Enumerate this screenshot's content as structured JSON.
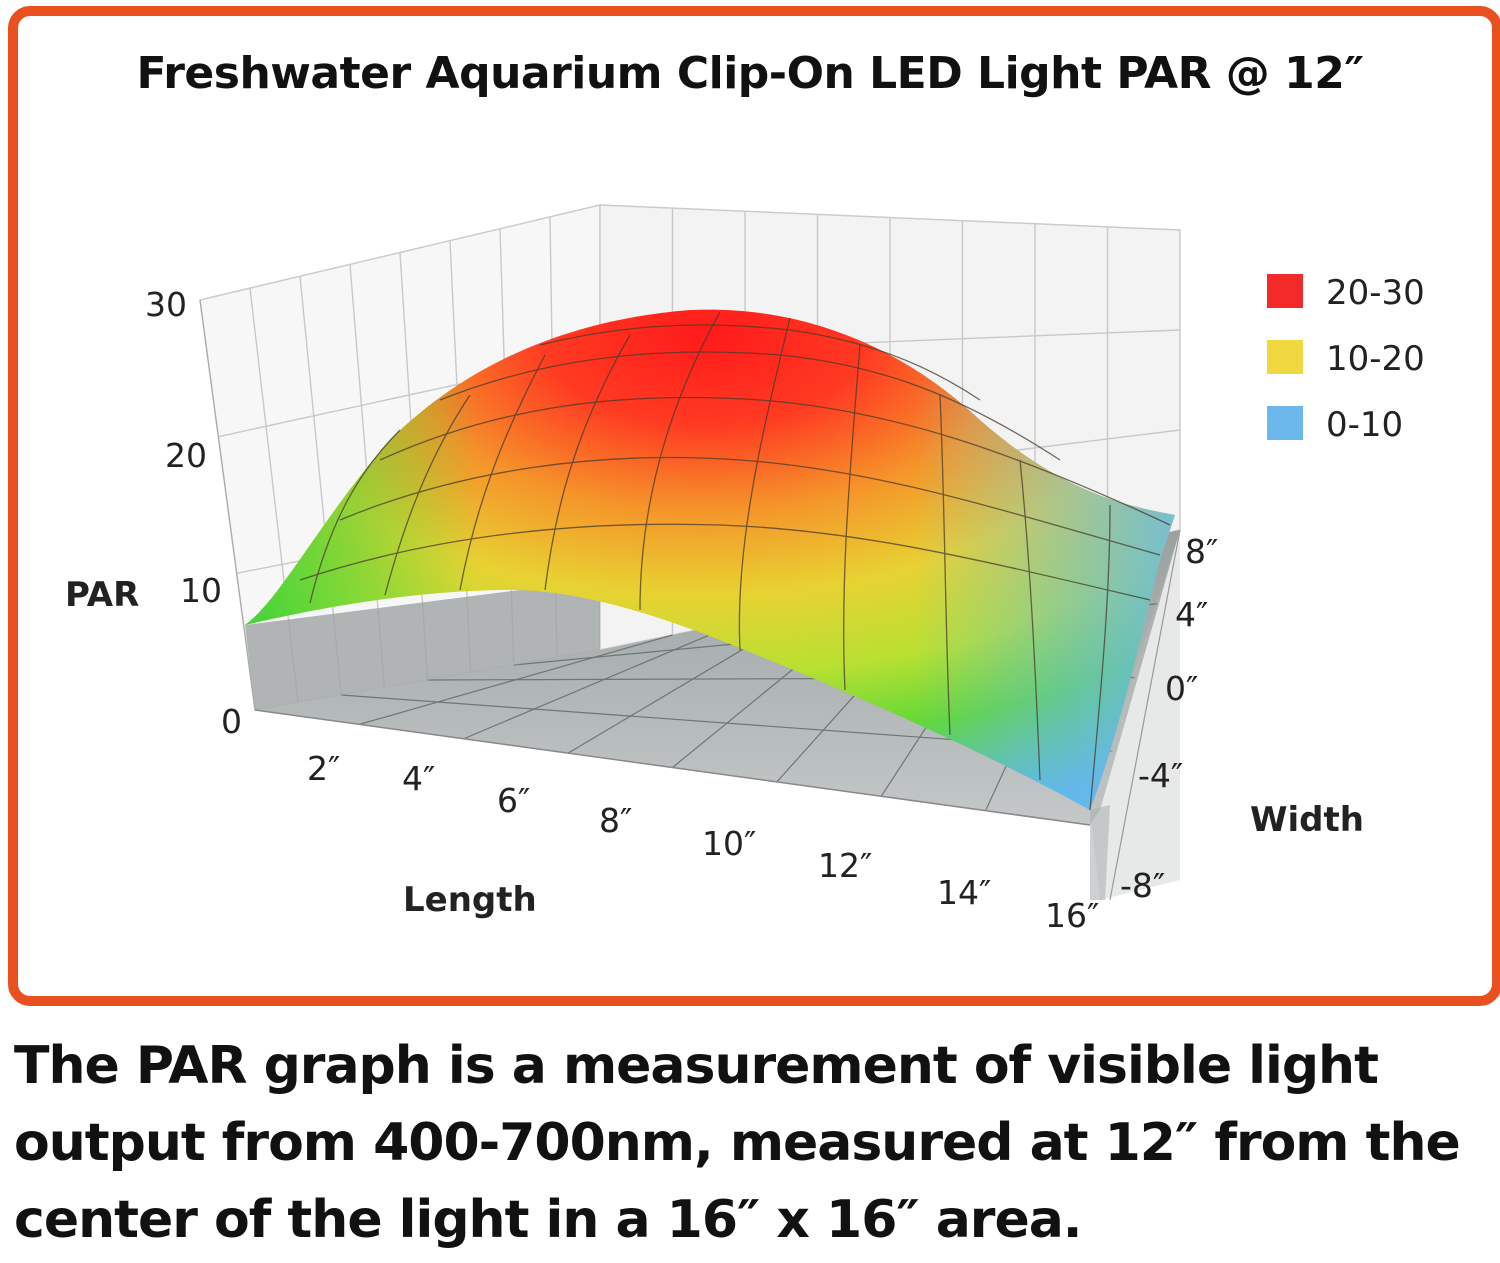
{
  "chart_data": {
    "type": "surface",
    "title": "Freshwater Aquarium Clip-On LED Light PAR @ 12″",
    "zlabel": "PAR",
    "xlabel": "Length",
    "ylabel": "Width",
    "zlim": [
      0,
      30
    ],
    "z_ticks": [
      "0",
      "10",
      "20",
      "30"
    ],
    "x_ticks": [
      "2″",
      "4″",
      "6″",
      "8″",
      "10″",
      "12″",
      "14″",
      "16″"
    ],
    "y_ticks": [
      "8″",
      "4″",
      "0″",
      "-4″",
      "-8″"
    ],
    "legend": [
      {
        "label": "20-30",
        "color": "#f32a2a"
      },
      {
        "label": "10-20",
        "color": "#f0d840"
      },
      {
        "label": "0-10",
        "color": "#6cb8ec"
      }
    ],
    "legend_placement": "right",
    "grid": true
  },
  "caption": "The PAR graph is a measurement of visible light output from 400-700nm, measured at 12″ from the center of the light in a 16″ x 16″ area."
}
